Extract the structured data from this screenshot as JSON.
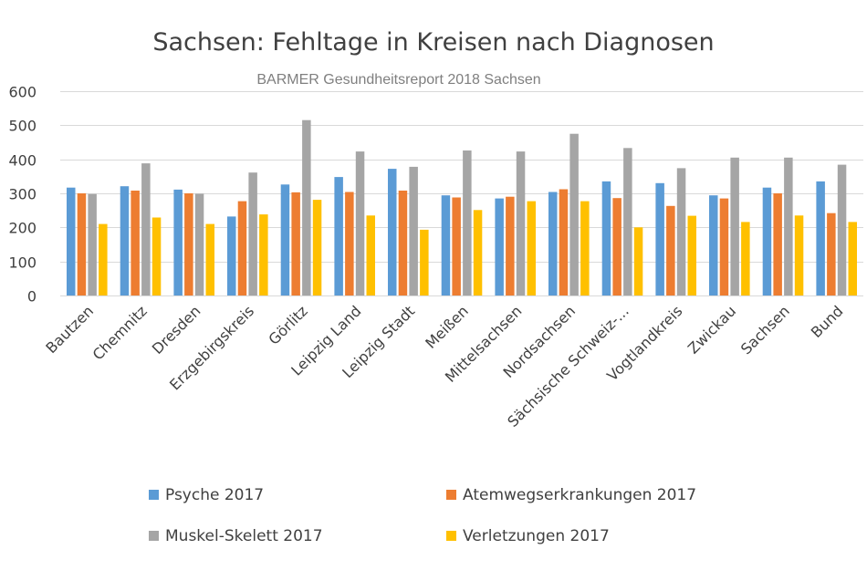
{
  "chart_data": {
    "type": "bar",
    "title": "Sachsen: Fehltage in Kreisen nach Diagnosen",
    "subtitle": "BARMER Gesundheitsreport  2018  Sachsen",
    "xlabel": "",
    "ylabel": "",
    "ylim": [
      0,
      600
    ],
    "yticks": [
      0,
      100,
      200,
      300,
      400,
      500,
      600
    ],
    "grid": true,
    "legend_position": "bottom",
    "categories": [
      "Bautzen",
      "Chemnitz",
      "Dresden",
      "Erzgebirgskreis",
      "Görlitz",
      "Leipzig Land",
      "Leipzig Stadt",
      "Meißen",
      "Mittelsachsen",
      "Nordsachsen",
      "Sächsische Schweiz-...",
      "Vogtlandkreis",
      "Zwickau",
      "Sachsen",
      "Bund"
    ],
    "series": [
      {
        "name": "Psyche   2017",
        "color": "#5b9bd5",
        "values": [
          317,
          321,
          311,
          232,
          326,
          348,
          372,
          294,
          285,
          304,
          335,
          330,
          294,
          317,
          335
        ]
      },
      {
        "name": "Atemwegserkrankungen 2017",
        "color": "#ed7d31",
        "values": [
          300,
          308,
          300,
          277,
          303,
          304,
          308,
          288,
          290,
          312,
          286,
          263,
          285,
          300,
          242
        ]
      },
      {
        "name": "Muskel-Skelett 2017",
        "color": "#a5a5a5",
        "values": [
          298,
          388,
          299,
          361,
          515,
          423,
          378,
          426,
          423,
          475,
          433,
          374,
          405,
          405,
          384
        ]
      },
      {
        "name": "Verletzungen   2017",
        "color": "#ffc000",
        "values": [
          210,
          229,
          210,
          238,
          281,
          235,
          193,
          251,
          277,
          277,
          200,
          234,
          216,
          235,
          216
        ]
      }
    ]
  }
}
